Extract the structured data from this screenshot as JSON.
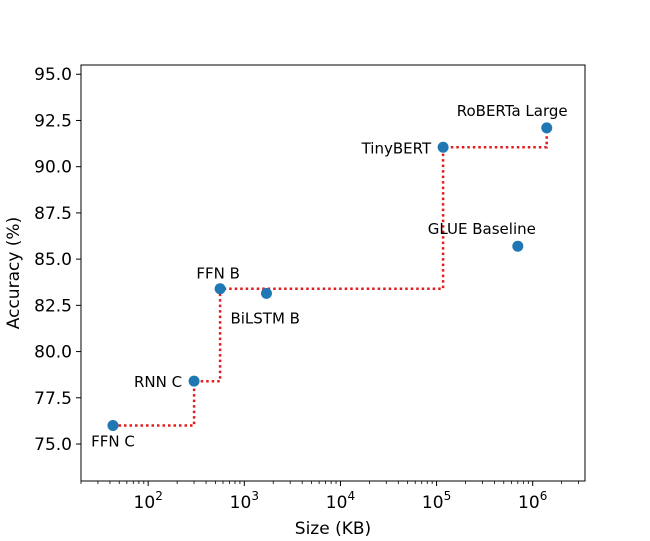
{
  "chart_data": {
    "type": "scatter",
    "title": "",
    "xlabel": "Size (KB)",
    "ylabel": "Accuracy (%)",
    "xscale": "log",
    "xlim": [
      20,
      3500000
    ],
    "ylim": [
      73.0,
      95.5
    ],
    "x_ticks": [
      {
        "value": 100,
        "base": "10",
        "exp": "2"
      },
      {
        "value": 1000,
        "base": "10",
        "exp": "3"
      },
      {
        "value": 10000,
        "base": "10",
        "exp": "4"
      },
      {
        "value": 100000,
        "base": "10",
        "exp": "5"
      },
      {
        "value": 1000000,
        "base": "10",
        "exp": "6"
      }
    ],
    "y_ticks": [
      "75.0",
      "77.5",
      "80.0",
      "82.5",
      "85.0",
      "87.5",
      "90.0",
      "92.5",
      "95.0"
    ],
    "grid": false,
    "point_color": "#1f77b4",
    "frontier_color": "#e41a1c",
    "points": [
      {
        "label": "FFN C",
        "x": 43,
        "y": 76.0,
        "label_pos": "below"
      },
      {
        "label": "RNN C",
        "x": 300,
        "y": 78.4,
        "label_pos": "left"
      },
      {
        "label": "FFN B",
        "x": 560,
        "y": 83.4,
        "label_pos": "above"
      },
      {
        "label": "BiLSTM B",
        "x": 1700,
        "y": 83.15,
        "label_pos": "below-left"
      },
      {
        "label": "TinyBERT",
        "x": 117000,
        "y": 91.05,
        "label_pos": "left"
      },
      {
        "label": "GLUE Baseline",
        "x": 700000,
        "y": 85.7,
        "label_pos": "above-left"
      },
      {
        "label": "RoBERTa Large",
        "x": 1400000,
        "y": 92.1,
        "label_pos": "above-left"
      }
    ],
    "pareto_frontier": [
      {
        "x": 43,
        "y": 76.0
      },
      {
        "x": 300,
        "y": 76.0
      },
      {
        "x": 300,
        "y": 78.4
      },
      {
        "x": 560,
        "y": 78.4
      },
      {
        "x": 560,
        "y": 83.4
      },
      {
        "x": 117000,
        "y": 83.4
      },
      {
        "x": 117000,
        "y": 91.05
      },
      {
        "x": 1400000,
        "y": 91.05
      },
      {
        "x": 1400000,
        "y": 92.1
      }
    ]
  }
}
